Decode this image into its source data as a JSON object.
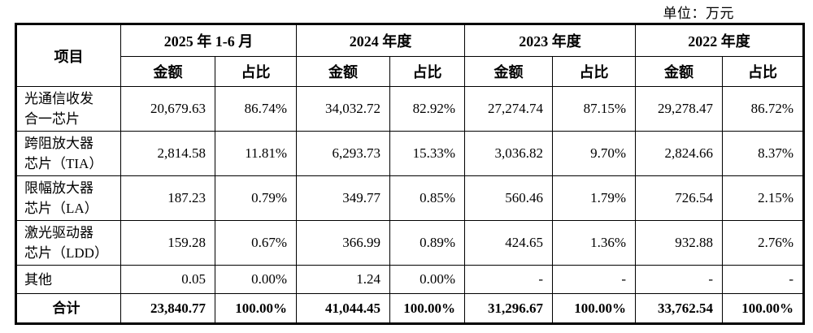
{
  "unit_label": "单位：万元",
  "table": {
    "item_header": "项目",
    "amount_header": "金额",
    "ratio_header": "占比",
    "periods": [
      {
        "label": "2025 年 1-6 月"
      },
      {
        "label": "2024 年度"
      },
      {
        "label": "2023 年度"
      },
      {
        "label": "2022 年度"
      }
    ],
    "rows": [
      {
        "name_lines": [
          "光通信收发",
          "合一芯片"
        ],
        "values": [
          "20,679.63",
          "86.74%",
          "34,032.72",
          "82.92%",
          "27,274.74",
          "87.15%",
          "29,278.47",
          "86.72%"
        ]
      },
      {
        "name_lines": [
          "跨阻放大器",
          "芯片（TIA）"
        ],
        "values": [
          "2,814.58",
          "11.81%",
          "6,293.73",
          "15.33%",
          "3,036.82",
          "9.70%",
          "2,824.66",
          "8.37%"
        ]
      },
      {
        "name_lines": [
          "限幅放大器",
          "芯片（LA）"
        ],
        "values": [
          "187.23",
          "0.79%",
          "349.77",
          "0.85%",
          "560.46",
          "1.79%",
          "726.54",
          "2.15%"
        ]
      },
      {
        "name_lines": [
          "激光驱动器",
          "芯片（LDD）"
        ],
        "values": [
          "159.28",
          "0.67%",
          "366.99",
          "0.89%",
          "424.65",
          "1.36%",
          "932.88",
          "2.76%"
        ]
      },
      {
        "name_lines": [
          "其他"
        ],
        "values": [
          "0.05",
          "0.00%",
          "1.24",
          "0.00%",
          "-",
          "-",
          "-",
          "-"
        ]
      }
    ],
    "total_row": {
      "name_lines": [
        "合计"
      ],
      "values": [
        "23,840.77",
        "100.00%",
        "41,044.45",
        "100.00%",
        "31,296.67",
        "100.00%",
        "33,762.54",
        "100.00%"
      ]
    }
  }
}
